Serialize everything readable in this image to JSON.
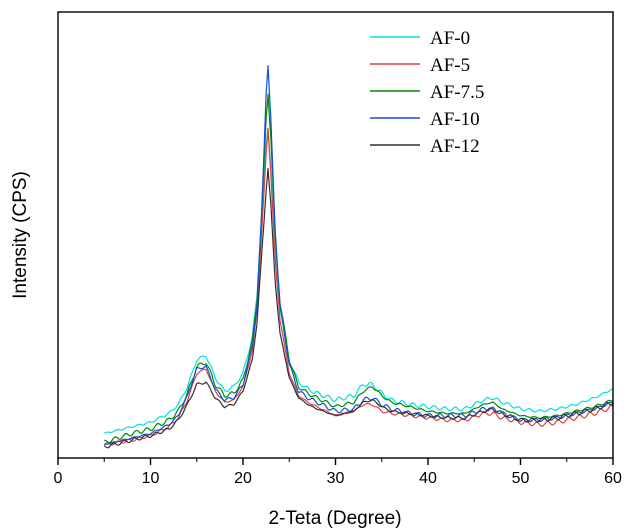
{
  "chart_data": {
    "type": "line",
    "title": "",
    "xlabel": "2-Teta (Degree)",
    "ylabel": "Intensity (CPS)",
    "xlim": [
      0,
      60
    ],
    "ylim": [
      0,
      100
    ],
    "x_ticks": [
      0,
      10,
      20,
      30,
      40,
      50,
      60
    ],
    "y_ticks_shown": false,
    "grid": false,
    "legend_position": "top-right",
    "series": [
      {
        "name": "AF-0",
        "color": "#00e0e0",
        "x": [
          5,
          8,
          10,
          12,
          13,
          14,
          15,
          16,
          17,
          18,
          19,
          20,
          21,
          21.5,
          22,
          22.5,
          22.7,
          23,
          23.5,
          24,
          25,
          26,
          27,
          28,
          30,
          32,
          33,
          34,
          35,
          36,
          38,
          40,
          42,
          44,
          46,
          47,
          48,
          50,
          52,
          54,
          56,
          58,
          60
        ],
        "y": [
          5.5,
          7,
          8,
          10,
          12,
          16,
          22,
          23,
          18,
          15,
          16,
          19,
          27,
          36,
          54,
          70,
          74,
          66,
          48,
          34,
          22,
          17,
          15.5,
          14.5,
          13,
          14,
          16.5,
          16.5,
          14.5,
          13,
          12,
          11.5,
          11,
          11,
          13,
          13.5,
          12.5,
          11,
          10.5,
          11,
          12,
          13.5,
          15.5
        ]
      },
      {
        "name": "AF-5",
        "color": "#e04040",
        "x": [
          5,
          8,
          10,
          12,
          13,
          14,
          15,
          16,
          17,
          18,
          19,
          20,
          21,
          21.5,
          22,
          22.5,
          22.7,
          23,
          23.5,
          24,
          25,
          26,
          27,
          28,
          30,
          32,
          33,
          34,
          35,
          36,
          38,
          40,
          42,
          44,
          46,
          47,
          48,
          50,
          52,
          54,
          56,
          58,
          60
        ],
        "y": [
          3,
          4,
          5,
          7,
          9,
          13,
          19,
          20,
          15,
          12.5,
          13,
          16,
          24,
          33,
          50,
          68,
          74,
          64,
          44,
          31,
          19,
          14,
          12.5,
          11.5,
          9.5,
          10.5,
          12,
          12,
          10.5,
          10,
          9.5,
          9,
          8.5,
          8.5,
          10,
          10,
          9,
          8,
          7.5,
          8,
          9,
          10,
          11.5
        ]
      },
      {
        "name": "AF-7.5",
        "color": "#008a00",
        "x": [
          5,
          8,
          10,
          12,
          13,
          14,
          15,
          16,
          17,
          18,
          19,
          20,
          21,
          21.5,
          22,
          22.5,
          22.7,
          23,
          23.5,
          24,
          25,
          26,
          27,
          28,
          30,
          32,
          33,
          34,
          35,
          36,
          38,
          40,
          42,
          44,
          46,
          47,
          48,
          50,
          52,
          54,
          56,
          58,
          60
        ],
        "y": [
          3.5,
          5.5,
          6.5,
          8.5,
          10.5,
          14.5,
          20.5,
          21.5,
          16.5,
          14,
          14.5,
          17.5,
          26,
          35,
          54,
          76,
          82,
          72,
          50,
          35,
          22,
          16,
          14.5,
          13.5,
          11.5,
          12.5,
          15,
          16,
          14,
          12.5,
          11.5,
          10.5,
          10,
          10,
          12,
          12.5,
          11,
          9.5,
          9,
          9.5,
          10.5,
          11.5,
          13
        ]
      },
      {
        "name": "AF-10",
        "color": "#1050d0",
        "x": [
          5,
          8,
          10,
          12,
          13,
          14,
          15,
          16,
          17,
          18,
          19,
          20,
          21,
          21.5,
          22,
          22.5,
          22.7,
          23,
          23.5,
          24,
          25,
          26,
          27,
          28,
          30,
          32,
          33,
          34,
          35,
          36,
          38,
          40,
          42,
          44,
          46,
          47,
          48,
          50,
          52,
          54,
          56,
          58,
          60
        ],
        "y": [
          3,
          4.5,
          5.5,
          7.5,
          9.5,
          14,
          20,
          20.5,
          15.5,
          13,
          13.5,
          16.5,
          25,
          34,
          54,
          82,
          88,
          76,
          50,
          34,
          21,
          15,
          13.5,
          12.5,
          10.5,
          11,
          13,
          13.5,
          12,
          11,
          10,
          9.5,
          9.5,
          9.5,
          11,
          11,
          10,
          8.5,
          8.5,
          9,
          10,
          11,
          12.5
        ]
      },
      {
        "name": "AF-12",
        "color": "#303030",
        "x": [
          5,
          8,
          10,
          12,
          13,
          14,
          15,
          16,
          17,
          18,
          19,
          20,
          21,
          21.5,
          22,
          22.5,
          22.7,
          23,
          23.5,
          24,
          25,
          26,
          27,
          28,
          30,
          32,
          33,
          34,
          35,
          36,
          38,
          40,
          42,
          44,
          46,
          47,
          48,
          50,
          52,
          54,
          56,
          58,
          60
        ],
        "y": [
          2.5,
          4,
          5,
          6.5,
          8.5,
          12,
          16.5,
          17,
          13.5,
          11.5,
          12,
          15,
          22,
          30,
          45,
          60,
          65,
          57,
          39,
          28,
          18,
          13.5,
          12,
          11,
          9.5,
          10.5,
          12.5,
          13,
          11.5,
          10.5,
          10,
          9.5,
          9,
          9,
          10.5,
          11,
          10,
          8.5,
          8.5,
          9,
          10,
          11,
          12.5
        ]
      }
    ]
  }
}
